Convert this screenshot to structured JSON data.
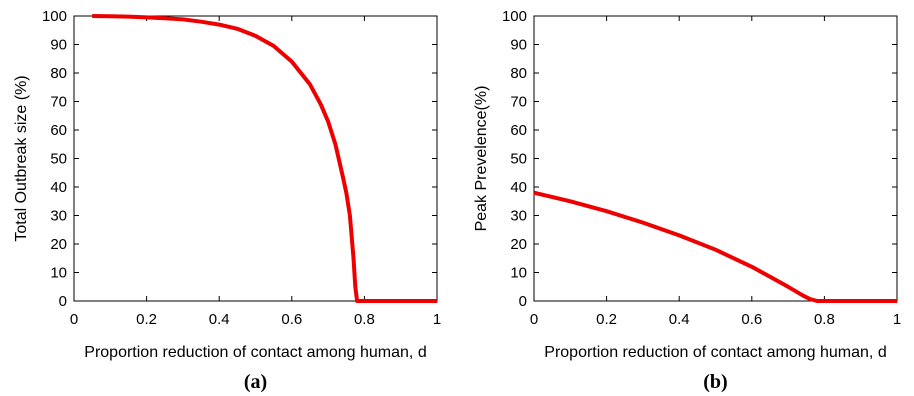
{
  "chart_data": [
    {
      "type": "line",
      "caption": "(a)",
      "title": "",
      "xlabel": "Proportion reduction of contact among human, d",
      "ylabel": "Total Outbreak size (%)",
      "xlim": [
        0,
        1
      ],
      "ylim": [
        0,
        100
      ],
      "xticks": [
        "0",
        "0.2",
        "0.4",
        "0.6",
        "0.8",
        "1"
      ],
      "yticks": [
        "0",
        "10",
        "20",
        "30",
        "40",
        "50",
        "60",
        "70",
        "80",
        "90",
        "100"
      ],
      "grid": false,
      "series": [
        {
          "color": "#ee0000",
          "x": [
            0.05,
            0.1,
            0.15,
            0.2,
            0.25,
            0.3,
            0.35,
            0.4,
            0.45,
            0.5,
            0.55,
            0.6,
            0.65,
            0.68,
            0.7,
            0.72,
            0.74,
            0.75,
            0.76,
            0.77,
            0.775,
            0.78,
            0.8,
            0.85,
            0.9,
            0.95,
            1.0
          ],
          "y": [
            100,
            99.9,
            99.8,
            99.5,
            99.2,
            98.8,
            98.0,
            97.0,
            95.5,
            93.0,
            89.5,
            84.0,
            76.0,
            69.0,
            63.0,
            55.0,
            44.0,
            38.0,
            30.0,
            15.0,
            5.0,
            0,
            0,
            0,
            0,
            0,
            0
          ]
        }
      ]
    },
    {
      "type": "line",
      "caption": "(b)",
      "title": "",
      "xlabel": "Proportion reduction of contact among human, d",
      "ylabel": "Peak Prevelence(%)",
      "xlim": [
        0,
        1
      ],
      "ylim": [
        0,
        100
      ],
      "xticks": [
        "0",
        "0.2",
        "0.4",
        "0.6",
        "0.8",
        "1"
      ],
      "yticks": [
        "0",
        "10",
        "20",
        "30",
        "40",
        "50",
        "60",
        "70",
        "80",
        "90",
        "100"
      ],
      "grid": false,
      "series": [
        {
          "color": "#ee0000",
          "x": [
            0,
            0.1,
            0.2,
            0.3,
            0.4,
            0.5,
            0.6,
            0.65,
            0.7,
            0.74,
            0.76,
            0.78,
            0.8,
            0.9,
            1.0
          ],
          "y": [
            38,
            35,
            31.5,
            27.5,
            23,
            18,
            12,
            8.5,
            5,
            2,
            0.7,
            0,
            0,
            0,
            0
          ]
        }
      ]
    }
  ]
}
